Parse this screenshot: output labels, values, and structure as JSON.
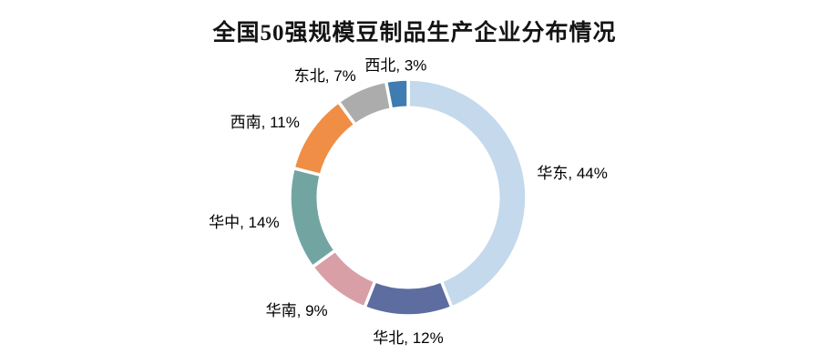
{
  "chart_data": {
    "type": "pie",
    "subtype": "donut",
    "title": "全国50强规模豆制品生产企业分布情况",
    "label_format": "{label}, {value}%",
    "legend": "none",
    "start_angle_deg": 0,
    "direction": "clockwise",
    "hole_ratio": 0.76,
    "total": 100,
    "series": [
      {
        "key": "huadong",
        "label": "华东",
        "value": 44,
        "color": "#c4d9eb"
      },
      {
        "key": "huabei",
        "label": "华北",
        "value": 12,
        "color": "#5d6da0"
      },
      {
        "key": "huanan",
        "label": "华南",
        "value": 9,
        "color": "#d99fa6"
      },
      {
        "key": "huazhong",
        "label": "华中",
        "value": 14,
        "color": "#72a5a2"
      },
      {
        "key": "xinan",
        "label": "西南",
        "value": 11,
        "color": "#ef8e44"
      },
      {
        "key": "dongbei",
        "label": "东北",
        "value": 7,
        "color": "#acacac"
      },
      {
        "key": "xibei",
        "label": "西北",
        "value": 3,
        "color": "#3e7cb1"
      }
    ],
    "colors": {
      "slice_border": "#ffffff",
      "title_text": "#141414",
      "label_text": "#000000",
      "background": "#ffffff"
    }
  }
}
